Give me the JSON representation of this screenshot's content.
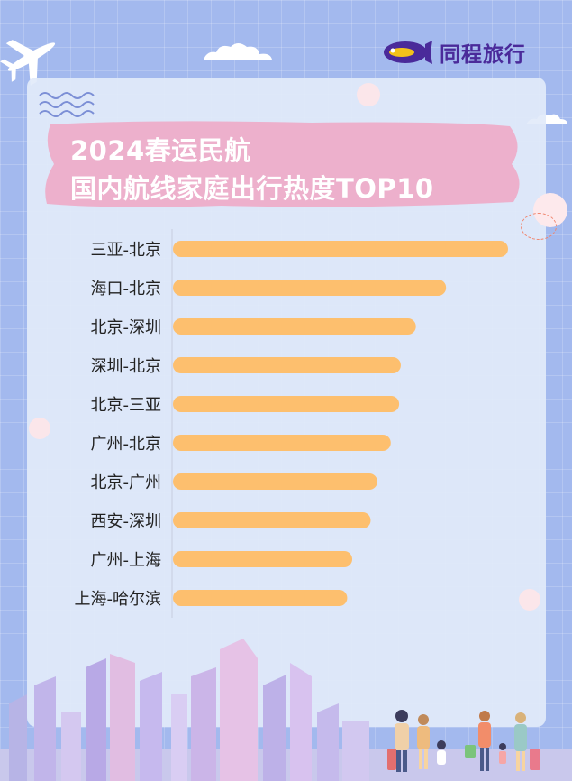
{
  "brand": {
    "name": "同程旅行",
    "color": "#4a2a9a",
    "accent": "#f3c21a"
  },
  "title": {
    "line1": "2024春运民航",
    "line2": "国内航线家庭出行热度TOP10"
  },
  "colors": {
    "bar": "#fdbf6e",
    "title_brush": "#eeaac6",
    "axis": "#c7cde0",
    "label": "#222222"
  },
  "chart_data": {
    "type": "bar",
    "orientation": "horizontal",
    "title": "2024春运民航 国内航线家庭出行热度TOP10",
    "categories": [
      "三亚-北京",
      "海口-北京",
      "北京-深圳",
      "深圳-北京",
      "北京-三亚",
      "广州-北京",
      "北京-广州",
      "西安-深圳",
      "广州-上海",
      "上海-哈尔滨"
    ],
    "values": [
      100,
      81.5,
      72.5,
      68,
      67.5,
      65,
      61,
      59,
      53.5,
      52
    ],
    "xlabel": "",
    "ylabel": "",
    "xlim": [
      0,
      100
    ],
    "grid": false,
    "value_axis_printed": false
  },
  "icons": {
    "logo": "airship-logo-icon",
    "plane": "airplane-icon",
    "waves": "waves-icon",
    "people": "family-travelers-illustration",
    "city": "city-skyline-illustration"
  }
}
